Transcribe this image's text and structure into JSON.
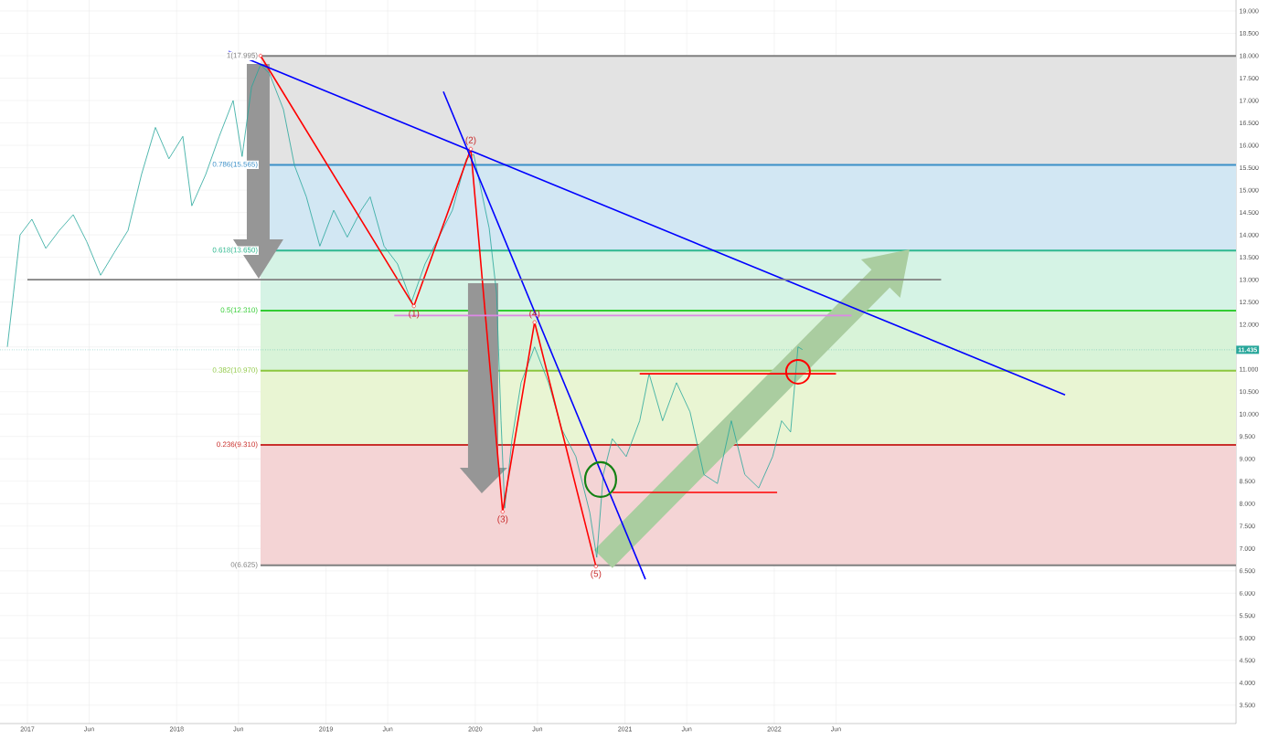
{
  "chart_data": {
    "type": "line",
    "x": [
      "2016-11-13",
      "2016-11-28",
      "2016-12-14",
      "2017-01-12",
      "2017-02-15",
      "2017-03-20",
      "2017-04-23",
      "2017-05-26",
      "2017-06-29",
      "2017-08-01",
      "2017-09-04",
      "2017-10-07",
      "2017-11-10",
      "2017-12-13",
      "2018-01-16",
      "2018-02-07",
      "2018-03-13",
      "2018-04-15",
      "2018-05-19",
      "2018-06-10",
      "2018-07-03",
      "2018-07-25",
      "2018-08-16",
      "2018-09-19",
      "2018-10-16",
      "2018-11-14",
      "2018-12-17",
      "2019-01-20",
      "2019-02-22",
      "2019-03-28",
      "2019-04-19",
      "2019-05-23",
      "2019-06-25",
      "2019-07-29",
      "2019-08-31",
      "2019-10-04",
      "2019-11-06",
      "2019-12-10",
      "2019-12-28",
      "2020-01-12",
      "2020-02-04",
      "2020-02-22",
      "2020-03-04",
      "2020-03-13",
      "2020-03-31",
      "2020-04-22",
      "2020-05-25",
      "2020-06-28",
      "2020-07-31",
      "2020-09-03",
      "2020-10-07",
      "2020-10-24",
      "2020-11-09",
      "2020-12-01",
      "2021-01-04",
      "2021-02-06",
      "2021-03-01",
      "2021-04-03",
      "2021-05-07",
      "2021-06-09",
      "2021-07-13",
      "2021-08-15",
      "2021-09-18",
      "2021-10-21",
      "2021-11-24",
      "2021-12-28",
      "2022-01-19",
      "2022-02-10",
      "2022-02-28",
      "2022-03-11"
    ],
    "series": [
      {
        "color": "#26a69a",
        "values": [
          11.5,
          12.7,
          14.0,
          14.35,
          13.7,
          14.1,
          14.45,
          13.85,
          13.1,
          13.6,
          14.1,
          15.35,
          16.4,
          15.7,
          16.2,
          14.65,
          15.35,
          16.2,
          17.0,
          15.75,
          17.3,
          17.8,
          17.6,
          16.8,
          15.55,
          14.85,
          13.75,
          14.55,
          13.95,
          14.55,
          14.85,
          13.75,
          13.35,
          12.5,
          13.35,
          13.95,
          14.55,
          15.7,
          15.8,
          15.15,
          14.15,
          12.7,
          9.85,
          7.9,
          9.45,
          10.7,
          11.5,
          10.7,
          9.65,
          9.05,
          7.8,
          6.8,
          8.65,
          9.45,
          9.05,
          9.85,
          10.9,
          9.85,
          10.7,
          10.05,
          8.65,
          8.45,
          9.85,
          8.65,
          8.35,
          9.05,
          9.85,
          9.6,
          11.5,
          11.44
        ]
      },
      {
        "color": "#ff0000",
        "marker": "circle",
        "x": [
          "2018-07-25",
          "2019-08-04",
          "2019-12-21",
          "2020-03-08",
          "2020-05-25",
          "2020-10-22"
        ],
        "values": [
          18.0,
          12.41,
          15.92,
          7.82,
          12.05,
          6.6
        ]
      },
      {
        "color": "#0000ff",
        "x": [
          "2018-05-08",
          "2023-12-13"
        ],
        "values": [
          18.1,
          10.43
        ]
      },
      {
        "color": "#0000ff",
        "x": [
          "2019-10-15",
          "2021-02-20"
        ],
        "values": [
          17.2,
          6.31
        ]
      },
      {
        "color": "#808080",
        "x": [
          "2017-01-01",
          "2023-02-13"
        ],
        "values": [
          13.0,
          13.0
        ]
      },
      {
        "color": "#dd88e6",
        "x": [
          "2019-06-17",
          "2022-07-09"
        ],
        "values": [
          12.2,
          12.2
        ]
      },
      {
        "color": "#ff0000",
        "x": [
          "2021-02-06",
          "2022-06-01"
        ],
        "values": [
          10.9,
          10.9
        ]
      },
      {
        "color": "#ff0000",
        "x": [
          "2020-12-01",
          "2022-01-08"
        ],
        "values": [
          8.25,
          8.25
        ]
      }
    ],
    "bands": [
      {
        "axis": "y",
        "from": 15.565,
        "to": 17.995,
        "color": "#e3e3e3"
      },
      {
        "axis": "y",
        "from": 13.65,
        "to": 15.565,
        "color": "#d2e7f3"
      },
      {
        "axis": "y",
        "from": 12.31,
        "to": 13.65,
        "color": "#d5f3e5"
      },
      {
        "axis": "y",
        "from": 10.97,
        "to": 12.31,
        "color": "#d8f3d8"
      },
      {
        "axis": "y",
        "from": 9.31,
        "to": 10.97,
        "color": "#e9f5d3"
      },
      {
        "axis": "y",
        "from": 6.625,
        "to": 9.31,
        "color": "#f4d4d5"
      }
    ],
    "ref_lines": [
      {
        "axis": "y",
        "value": 17.995,
        "label": "1(17.995)",
        "color": "#7f7f7f"
      },
      {
        "axis": "y",
        "value": 15.565,
        "label": "0.786(15.565)",
        "color": "#3a8fc8"
      },
      {
        "axis": "y",
        "value": 13.65,
        "label": "0.618(13.650)",
        "color": "#2eb88f"
      },
      {
        "axis": "y",
        "value": 12.31,
        "label": "0.5(12.310)",
        "color": "#33cc33"
      },
      {
        "axis": "y",
        "value": 10.97,
        "label": "0.382(10.970)",
        "color": "#8cc63f"
      },
      {
        "axis": "y",
        "value": 9.31,
        "label": "0.236(9.310)",
        "color": "#c9302c"
      },
      {
        "axis": "y",
        "value": 6.625,
        "label": "0(6.625)",
        "color": "#7f7f7f"
      },
      {
        "axis": "y",
        "value": 11.435,
        "label": "11.435",
        "color": "#26a69a",
        "line_style": "dotted"
      }
    ],
    "annotations": [
      {
        "text": "(1)",
        "x": "2019-08-04",
        "y": 12.41
      },
      {
        "text": "(2)",
        "x": "2019-12-21",
        "y": 15.92
      },
      {
        "text": "(3)",
        "x": "2020-03-08",
        "y": 7.82
      },
      {
        "text": "(4)",
        "x": "2020-05-25",
        "y": 12.05
      },
      {
        "text": "(5)",
        "x": "2020-10-22",
        "y": 6.6
      }
    ],
    "xlim": [
      "2016-10-26",
      "2025-02-03"
    ],
    "xticks": [
      {
        "value": "2017-01-01",
        "label": "2017"
      },
      {
        "value": "2017-06-01",
        "label": "Jun"
      },
      {
        "value": "2018-01-01",
        "label": "2018"
      },
      {
        "value": "2018-06-01",
        "label": "Jun"
      },
      {
        "value": "2019-01-01",
        "label": "2019"
      },
      {
        "value": "2019-06-01",
        "label": "Jun"
      },
      {
        "value": "2020-01-01",
        "label": "2020"
      },
      {
        "value": "2020-06-01",
        "label": "Jun"
      },
      {
        "value": "2021-01-01",
        "label": "2021"
      },
      {
        "value": "2021-06-01",
        "label": "Jun"
      },
      {
        "value": "2022-01-01",
        "label": "2022"
      },
      {
        "value": "2022-06-01",
        "label": "Jun"
      }
    ],
    "ylim": [
      3.09,
      19.245
    ],
    "yticks": [
      {
        "value": 3.5,
        "label": "3.500"
      },
      {
        "value": 4,
        "label": "4.000"
      },
      {
        "value": 4.5,
        "label": "4.500"
      },
      {
        "value": 5,
        "label": "5.000"
      },
      {
        "value": 5.5,
        "label": "5.500"
      },
      {
        "value": 6,
        "label": "6.000"
      },
      {
        "value": 6.5,
        "label": "6.500"
      },
      {
        "value": 7,
        "label": "7.000"
      },
      {
        "value": 7.5,
        "label": "7.500"
      },
      {
        "value": 8,
        "label": "8.000"
      },
      {
        "value": 8.5,
        "label": "8.500"
      },
      {
        "value": 9,
        "label": "9.000"
      },
      {
        "value": 9.5,
        "label": "9.500"
      },
      {
        "value": 10,
        "label": "10.000"
      },
      {
        "value": 10.5,
        "label": "10.500"
      },
      {
        "value": 11,
        "label": "11.000"
      },
      {
        "value": 11.5,
        "label": null
      },
      {
        "value": 12,
        "label": "12.000"
      },
      {
        "value": 12.5,
        "label": "12.500"
      },
      {
        "value": 13,
        "label": "13.000"
      },
      {
        "value": 13.5,
        "label": "13.500"
      },
      {
        "value": 14,
        "label": "14.000"
      },
      {
        "value": 14.5,
        "label": "14.500"
      },
      {
        "value": 15,
        "label": "15.000"
      },
      {
        "value": 15.5,
        "label": "15.500"
      },
      {
        "value": 16,
        "label": "16.000"
      },
      {
        "value": 16.5,
        "label": "16.500"
      },
      {
        "value": 17,
        "label": "17.000"
      },
      {
        "value": 17.5,
        "label": "17.500"
      },
      {
        "value": 18,
        "label": "18.000"
      },
      {
        "value": 18.5,
        "label": "18.500"
      },
      {
        "value": 19,
        "label": "19.000"
      }
    ],
    "grid": true,
    "line_style": "solid"
  }
}
